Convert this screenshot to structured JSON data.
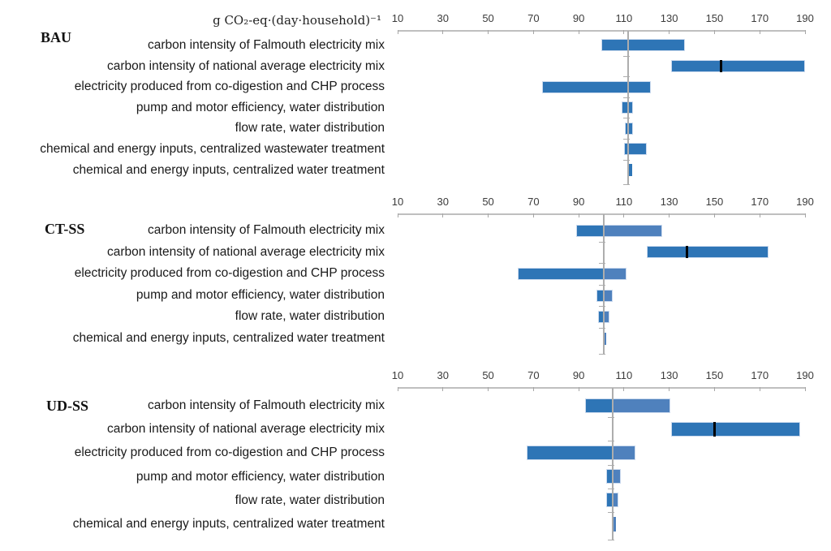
{
  "colors": {
    "bar_dark": "#2E75B6",
    "bar_light": "#4F81BD",
    "bar_border": "#CBDAEE",
    "axis_line": "#BFBFBF",
    "tick_mark": "#A6A6A6",
    "baseline_line": "#ADADAD",
    "marker": "#000000"
  },
  "chart_data": [
    {
      "type": "bar",
      "subtype": "tornado",
      "title": "g CO₂-eq·(day·household)⁻¹",
      "panel_label": "BAU",
      "axis": {
        "min": 10,
        "max": 190,
        "ticks": [
          10,
          30,
          50,
          70,
          90,
          110,
          130,
          150,
          170,
          190
        ]
      },
      "baseline": 112,
      "two_tone": false,
      "rows": [
        {
          "label": "carbon intensity of Falmouth electricity mix",
          "low": 100,
          "high": 137
        },
        {
          "label": "carbon intensity of national average electricity mix",
          "low": 131,
          "high": 190,
          "marker": 153
        },
        {
          "label": "electricity produced from co-digestion and CHP process",
          "low": 74,
          "high": 122
        },
        {
          "label": "pump and motor efficiency, water distribution",
          "low": 109,
          "high": 114
        },
        {
          "label": "flow rate, water distribution",
          "low": 110.5,
          "high": 114
        },
        {
          "label": "chemical and energy inputs, centralized wastewater treatment",
          "low": 110,
          "high": 120
        },
        {
          "label": "chemical and energy inputs, centralized water treatment",
          "low": 112.3,
          "high": 113.5
        }
      ]
    },
    {
      "type": "bar",
      "subtype": "tornado",
      "panel_label": "CT-SS",
      "axis": {
        "min": 10,
        "max": 190,
        "ticks": [
          10,
          30,
          50,
          70,
          90,
          110,
          130,
          150,
          170,
          190
        ]
      },
      "baseline": 101,
      "two_tone": true,
      "rows": [
        {
          "label": "carbon intensity of Falmouth electricity mix",
          "low": 89,
          "high": 127
        },
        {
          "label": "carbon intensity of national average electricity mix",
          "low": 120,
          "high": 174,
          "marker": 138
        },
        {
          "label": "electricity produced from co-digestion and CHP process",
          "low": 63,
          "high": 111
        },
        {
          "label": "pump and motor efficiency, water distribution",
          "low": 98,
          "high": 105
        },
        {
          "label": "flow rate, water distribution",
          "low": 98.5,
          "high": 103.5
        },
        {
          "label": "chemical and energy inputs, centralized water treatment",
          "low": 101,
          "high": 102.3
        }
      ]
    },
    {
      "type": "bar",
      "subtype": "tornado",
      "panel_label": "UD-SS",
      "axis": {
        "min": 10,
        "max": 190,
        "ticks": [
          10,
          30,
          50,
          70,
          90,
          110,
          130,
          150,
          170,
          190
        ]
      },
      "baseline": 105,
      "two_tone": true,
      "rows": [
        {
          "label": "carbon intensity of Falmouth electricity mix",
          "low": 93,
          "high": 130.5
        },
        {
          "label": "carbon intensity of national average electricity mix",
          "low": 131,
          "high": 188,
          "marker": 150
        },
        {
          "label": "electricity produced from co-digestion and CHP process",
          "low": 67,
          "high": 115
        },
        {
          "label": "pump and motor efficiency, water distribution",
          "low": 102,
          "high": 108.5
        },
        {
          "label": "flow rate, water distribution",
          "low": 102.3,
          "high": 107.5
        },
        {
          "label": "chemical and energy inputs, centralized water treatment",
          "low": 105,
          "high": 106.5
        }
      ]
    }
  ]
}
